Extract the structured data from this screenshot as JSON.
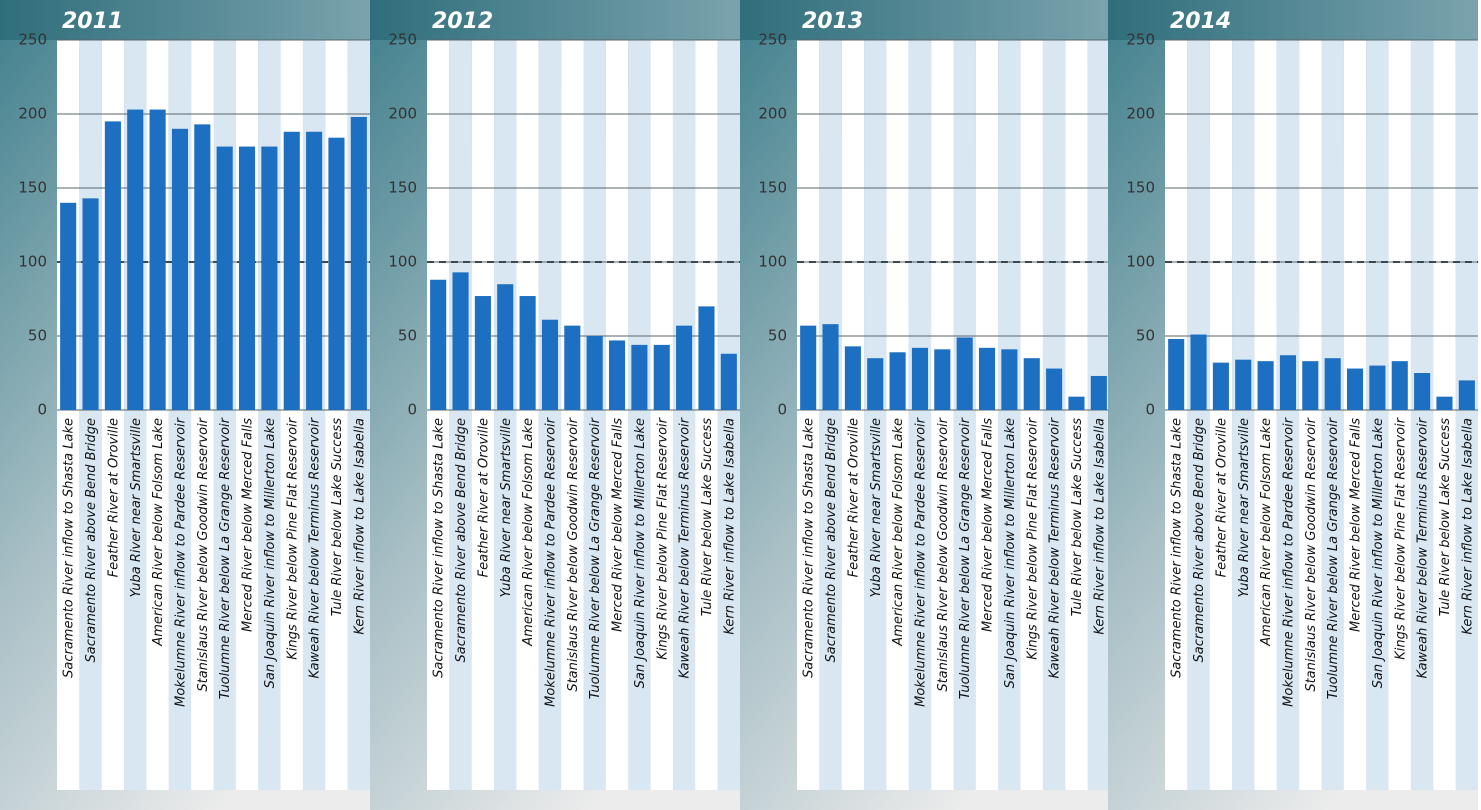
{
  "chart_data": [
    {
      "type": "bar",
      "title": "2011",
      "categories": [
        "Sacramento River inflow to Shasta Lake",
        "Sacramento River above Bend Bridge",
        "Feather River at Oroville",
        "Yuba River near Smartsville",
        "American River below Folsom Lake",
        "Mokelumne River inflow to Pardee Reservoir",
        "Stanislaus River below Goodwin Reservoir",
        "Tuolumne River below La Grange Reservoir",
        "Merced River below Merced Falls",
        "San Joaquin River inflow to Millerton Lake",
        "Kings River below Pine Flat Reservoir",
        "Kaweah River below Terminus Reservoir",
        "Tule River below Lake Success",
        "Kern River inflow to Lake Isabella"
      ],
      "values": [
        140,
        143,
        195,
        203,
        203,
        190,
        193,
        178,
        178,
        178,
        188,
        188,
        184,
        198
      ],
      "color": "#1d6fc1",
      "ylim": [
        0,
        250
      ],
      "yticks": [
        0,
        50,
        100,
        150,
        200,
        250
      ],
      "grid": true,
      "reference_line": 100
    },
    {
      "type": "bar",
      "title": "2012",
      "categories": [
        "Sacramento River inflow to Shasta Lake",
        "Sacramento River above Bend Bridge",
        "Feather River at Oroville",
        "Yuba River near Smartsville",
        "American River below Folsom Lake",
        "Mokelumne River inflow to Pardee Reservoir",
        "Stanislaus River below Goodwin Reservoir",
        "Tuolumne River below La Grange Reservoir",
        "Merced River below Merced Falls",
        "San Joaquin River inflow to Millerton Lake",
        "Kings River below Pine Flat Reservoir",
        "Kaweah River below Terminus Reservoir",
        "Tule River below Lake Success",
        "Kern River inflow to Lake Isabella"
      ],
      "values": [
        88,
        93,
        77,
        85,
        77,
        61,
        57,
        50,
        47,
        44,
        44,
        57,
        70,
        38
      ],
      "color": "#1d6fc1",
      "ylim": [
        0,
        250
      ],
      "yticks": [
        0,
        50,
        100,
        150,
        200,
        250
      ],
      "grid": true,
      "reference_line": 100
    },
    {
      "type": "bar",
      "title": "2013",
      "categories": [
        "Sacramento River inflow to Shasta Lake",
        "Sacramento River above Bend Bridge",
        "Feather River at Oroville",
        "Yuba River near Smartsville",
        "American River below Folsom Lake",
        "Mokelumne River inflow to Pardee Reservoir",
        "Stanislaus River below Goodwin Reservoir",
        "Tuolumne River below La Grange Reservoir",
        "Merced River below Merced Falls",
        "San Joaquin River inflow to Millerton Lake",
        "Kings River below Pine Flat Reservoir",
        "Kaweah River below Terminus Reservoir",
        "Tule River below Lake Success",
        "Kern River inflow to Lake Isabella"
      ],
      "values": [
        57,
        58,
        43,
        35,
        39,
        42,
        41,
        49,
        42,
        41,
        35,
        28,
        9,
        23
      ],
      "color": "#1d6fc1",
      "ylim": [
        0,
        250
      ],
      "yticks": [
        0,
        50,
        100,
        150,
        200,
        250
      ],
      "grid": true,
      "reference_line": 100
    },
    {
      "type": "bar",
      "title": "2014",
      "categories": [
        "Sacramento River inflow to Shasta Lake",
        "Sacramento River above Bend Bridge",
        "Feather River at Oroville",
        "Yuba River near Smartsville",
        "American River below Folsom Lake",
        "Mokelumne River inflow to Pardee Reservoir",
        "Stanislaus River below Goodwin Reservoir",
        "Tuolumne River below La Grange Reservoir",
        "Merced River below Merced Falls",
        "San Joaquin River inflow to Millerton Lake",
        "Kings River below Pine Flat Reservoir",
        "Kaweah River below Terminus Reservoir",
        "Tule River below Lake Success",
        "Kern River inflow to Lake Isabella"
      ],
      "values": [
        48,
        51,
        32,
        34,
        33,
        37,
        33,
        35,
        28,
        30,
        33,
        25,
        9,
        20
      ],
      "color": "#1d6fc1",
      "ylim": [
        0,
        250
      ],
      "yticks": [
        0,
        50,
        100,
        150,
        200,
        250
      ],
      "grid": true,
      "reference_line": 100
    }
  ]
}
